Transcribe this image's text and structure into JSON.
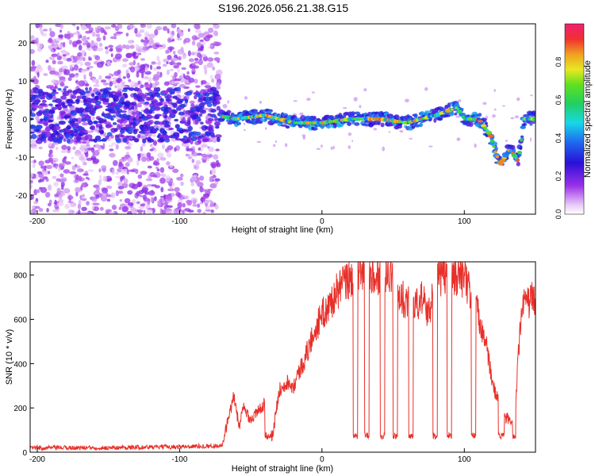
{
  "figure_title": "S196.2026.056.21.38.G15",
  "chart_data": [
    {
      "type": "heatmap",
      "title": "S196.2026.056.21.38.G15",
      "xlabel": "Height of straight line (km)",
      "ylabel": "Frequency (Hz)",
      "xlim": [
        -205,
        150
      ],
      "ylim": [
        -25,
        25
      ],
      "xticks": [
        -200,
        -100,
        0,
        100
      ],
      "yticks": [
        -20,
        -10,
        0,
        10,
        20
      ],
      "colorbar": {
        "label": "Normalized spectral amplitude",
        "range": [
          0,
          1
        ],
        "ticks": [
          0.0,
          0.2,
          0.4,
          0.6,
          0.8
        ]
      },
      "ridge": {
        "description_points_x_km": [
          -205,
          -150,
          -100,
          -75,
          -60,
          -40,
          -20,
          0,
          20,
          40,
          60,
          80,
          95,
          100,
          110,
          118,
          125,
          132,
          138,
          142,
          150
        ],
        "frequency_hz": [
          1,
          1,
          1,
          1,
          0,
          1,
          -1,
          -1,
          0,
          0,
          -1,
          1,
          3,
          0,
          0,
          -4,
          -12,
          -8,
          -11,
          0,
          0
        ]
      }
    },
    {
      "type": "line",
      "xlabel": "Height of straight line (km)",
      "ylabel": "SNR (10 * v/v)",
      "xlim": [
        -205,
        150
      ],
      "ylim": [
        0,
        860
      ],
      "xticks": [
        -200,
        -100,
        0,
        100
      ],
      "yticks": [
        0,
        200,
        400,
        600,
        800
      ],
      "series": [
        {
          "name": "SNR",
          "color": "#e8302a",
          "x": [
            -205,
            -150,
            -100,
            -70,
            -62,
            -58,
            -55,
            -50,
            -45,
            -40,
            -35,
            -30,
            -25,
            -20,
            -15,
            -12,
            -10,
            -5,
            0,
            5,
            10,
            15,
            20,
            25,
            30,
            35,
            40,
            45,
            50,
            55,
            60,
            65,
            70,
            75,
            80,
            85,
            90,
            95,
            100,
            105,
            110,
            115,
            120,
            125,
            130,
            135,
            140,
            145,
            150
          ],
          "y": [
            20,
            20,
            25,
            30,
            250,
            120,
            200,
            150,
            180,
            230,
            60,
            280,
            320,
            300,
            380,
            420,
            460,
            550,
            620,
            660,
            720,
            760,
            780,
            800,
            820,
            810,
            790,
            820,
            800,
            700,
            680,
            650,
            700,
            620,
            780,
            800,
            810,
            800,
            790,
            700,
            620,
            500,
            300,
            220,
            150,
            120,
            650,
            680,
            700
          ]
        }
      ]
    }
  ],
  "colors": {
    "snr_line": "#e8302a",
    "background": "#ffffff",
    "axis": "#000000"
  }
}
